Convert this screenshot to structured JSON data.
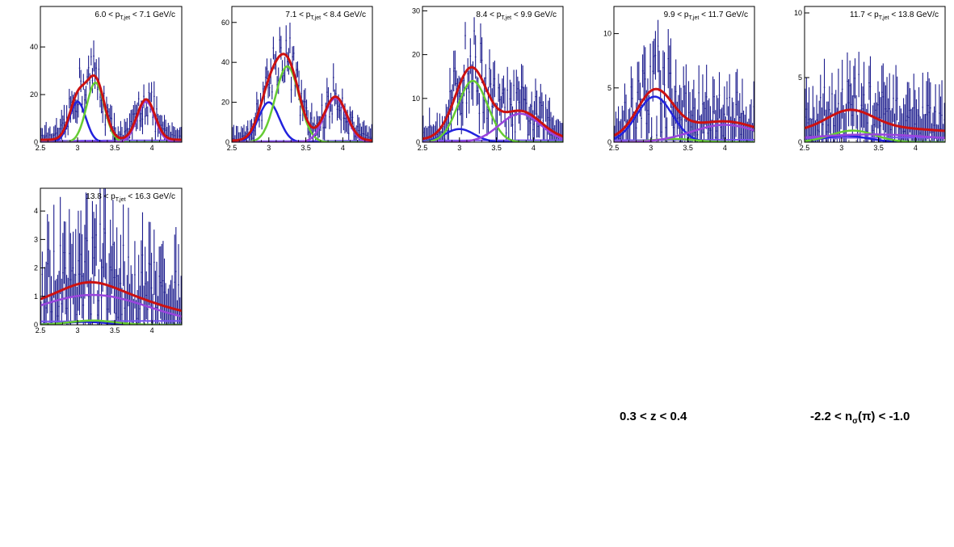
{
  "colors": {
    "data": "#1a1a8c",
    "total_fit": "#cc1111",
    "pion": "#2222dd",
    "kaon": "#66cc33",
    "proton": "#9944dd",
    "other": "#7755ee"
  },
  "notes": {
    "z_range": "0.3 < z < 0.4",
    "nsigma_prefix": "-2.2 < n",
    "nsigma_sub": "σ",
    "nsigma_suffix": "(π) < -1.0"
  },
  "chart_data": [
    {
      "type": "scatter",
      "label_prefix": "6.0 < p",
      "label_sub": "T,jet",
      "label_suffix": " < 7.1 GeV/c",
      "xlim": [
        2.5,
        4.4
      ],
      "ylim": [
        0,
        57
      ],
      "xticks": [
        2.5,
        3,
        3.5,
        4
      ],
      "yticks": [
        0,
        20,
        40
      ],
      "gaussians": [
        {
          "name": "pion",
          "amp": 17,
          "mu": 3.0,
          "sigma": 0.11
        },
        {
          "name": "kaon",
          "amp": 25,
          "mu": 3.24,
          "sigma": 0.12
        },
        {
          "name": "proton",
          "amp": 17,
          "mu": 3.92,
          "sigma": 0.12
        }
      ],
      "baseline": 1.0,
      "noise": 6
    },
    {
      "type": "scatter",
      "label_prefix": "7.1 < p",
      "label_sub": "T,jet",
      "label_suffix": " < 8.4 GeV/c",
      "xlim": [
        2.5,
        4.4
      ],
      "ylim": [
        0,
        68
      ],
      "xticks": [
        2.5,
        3,
        3.5,
        4
      ],
      "yticks": [
        0,
        20,
        40,
        60
      ],
      "gaussians": [
        {
          "name": "pion",
          "amp": 20,
          "mu": 3.0,
          "sigma": 0.14
        },
        {
          "name": "kaon",
          "amp": 38,
          "mu": 3.25,
          "sigma": 0.16
        },
        {
          "name": "proton",
          "amp": 22,
          "mu": 3.9,
          "sigma": 0.15
        }
      ],
      "baseline": 0.8,
      "noise": 7
    },
    {
      "type": "scatter",
      "label_prefix": "8.4 < p",
      "label_sub": "T,jet",
      "label_suffix": " < 9.9 GeV/c",
      "xlim": [
        2.5,
        4.4
      ],
      "ylim": [
        0,
        31
      ],
      "xticks": [
        2.5,
        3,
        3.5,
        4
      ],
      "yticks": [
        0,
        10,
        20,
        30
      ],
      "gaussians": [
        {
          "name": "pion",
          "amp": 3,
          "mu": 3.0,
          "sigma": 0.2
        },
        {
          "name": "kaon",
          "amp": 14,
          "mu": 3.18,
          "sigma": 0.2
        },
        {
          "name": "proton",
          "amp": 6.5,
          "mu": 3.82,
          "sigma": 0.28
        }
      ],
      "baseline": 0.6,
      "noise": 5
    },
    {
      "type": "scatter",
      "label_prefix": "9.9 < p",
      "label_sub": "T,jet",
      "label_suffix": " < 11.7 GeV/c",
      "xlim": [
        2.5,
        4.4
      ],
      "ylim": [
        0,
        12.5
      ],
      "xticks": [
        2.5,
        3,
        3.5,
        4
      ],
      "yticks": [
        0,
        5,
        10
      ],
      "gaussians": [
        {
          "name": "pion",
          "amp": 4.2,
          "mu": 3.05,
          "sigma": 0.24
        },
        {
          "name": "kaon",
          "amp": 0.3,
          "mu": 3.3,
          "sigma": 0.3
        },
        {
          "name": "proton",
          "amp": 1.6,
          "mu": 4.0,
          "sigma": 0.45
        }
      ],
      "baseline": 0.3,
      "noise": 3
    },
    {
      "type": "scatter",
      "label_prefix": "11.7 < p",
      "label_sub": "T,jet",
      "label_suffix": " < 13.8 GeV/c",
      "xlim": [
        2.5,
        4.4
      ],
      "ylim": [
        0,
        10.5
      ],
      "xticks": [
        2.5,
        3,
        3.5,
        4
      ],
      "yticks": [
        0,
        5,
        10
      ],
      "gaussians": [
        {
          "name": "pion",
          "amp": 0.5,
          "mu": 3.05,
          "sigma": 0.3
        },
        {
          "name": "kaon",
          "amp": 0.9,
          "mu": 3.15,
          "sigma": 0.3
        },
        {
          "name": "proton",
          "amp": 0.6,
          "mu": 3.4,
          "sigma": 0.9
        }
      ],
      "baseline": 0.55,
      "noise": 2.5
    },
    {
      "type": "scatter",
      "label_prefix": "13.8 < p",
      "label_sub": "T,jet",
      "label_suffix": " < 16.3 GeV/c",
      "xlim": [
        2.5,
        4.4
      ],
      "ylim": [
        0,
        4.8
      ],
      "xticks": [
        2.5,
        3,
        3.5,
        4
      ],
      "yticks": [
        0,
        1,
        2,
        3,
        4
      ],
      "gaussians": [
        {
          "name": "pion",
          "amp": 0.1,
          "mu": 3.1,
          "sigma": 0.3
        },
        {
          "name": "kaon",
          "amp": 0.15,
          "mu": 3.2,
          "sigma": 0.3
        },
        {
          "name": "proton",
          "amp": 1.05,
          "mu": 3.2,
          "sigma": 0.75
        }
      ],
      "baseline": 0.2,
      "noise": 1.6
    }
  ]
}
